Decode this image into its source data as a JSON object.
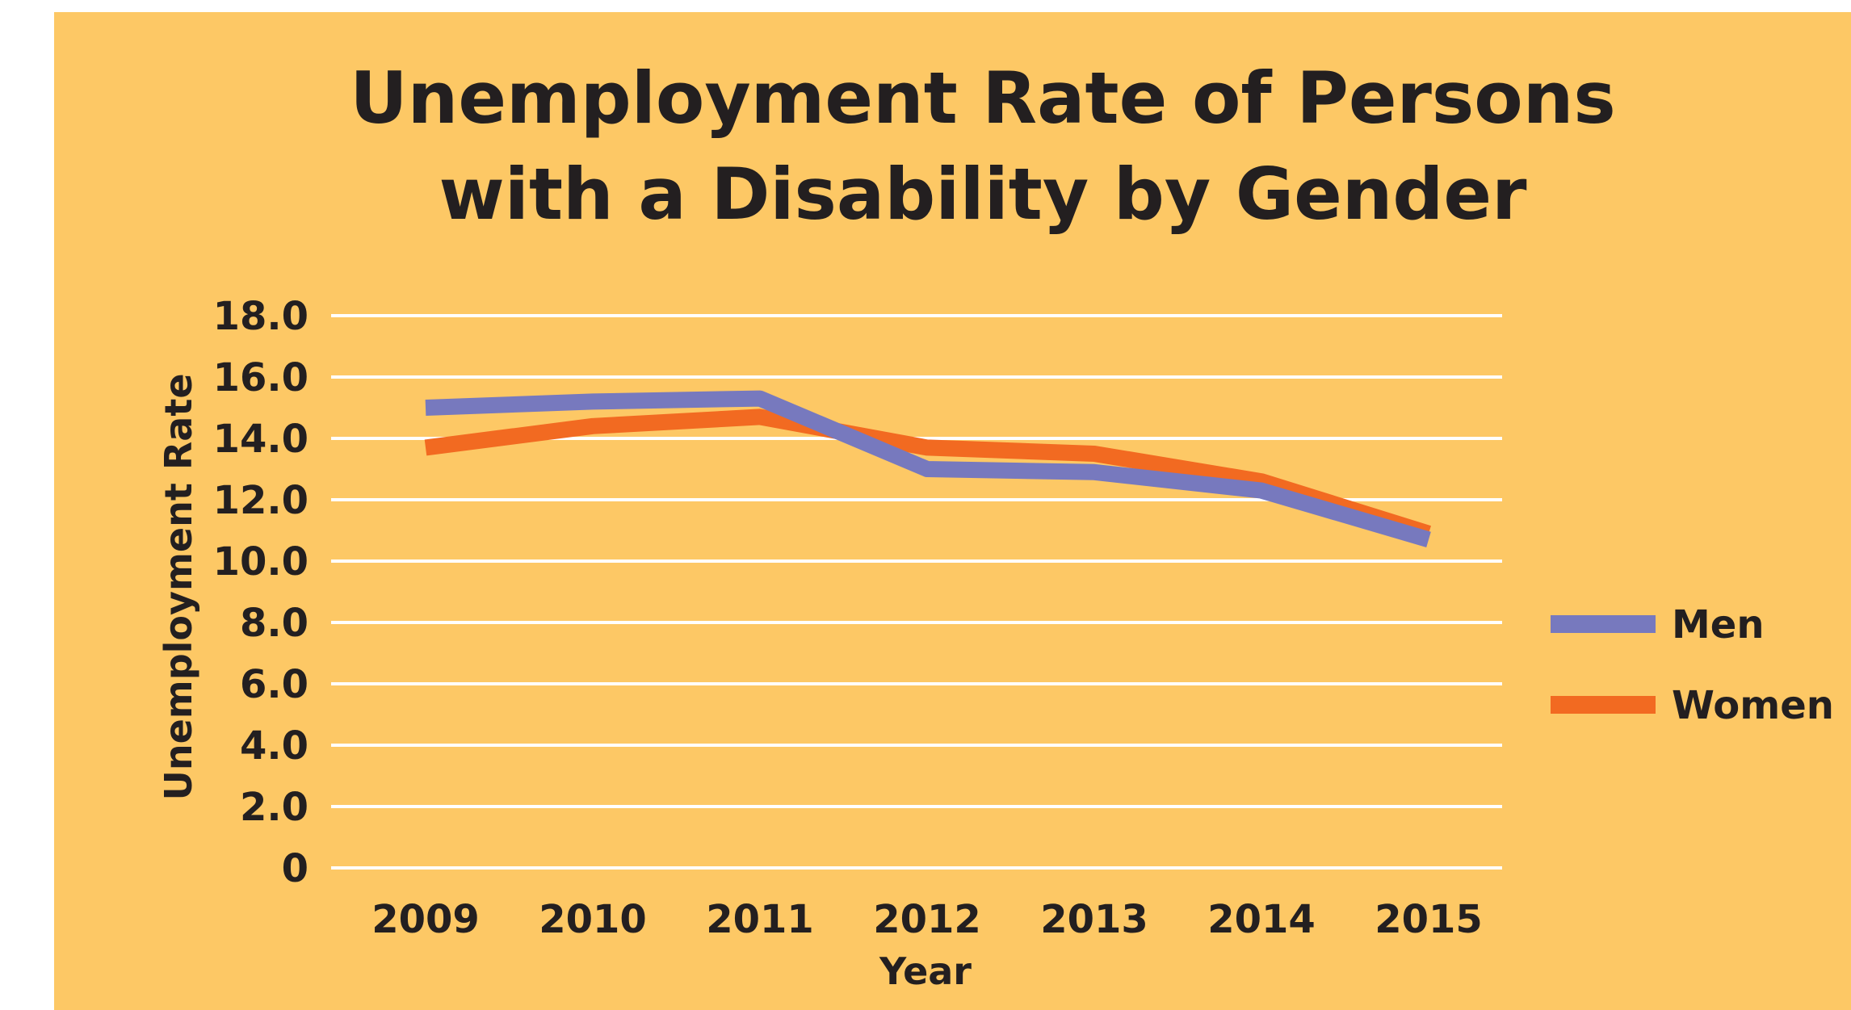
{
  "chart_data": {
    "type": "line",
    "title_lines": [
      "Unemployment Rate of Persons",
      "with a Disability by Gender"
    ],
    "xlabel": "Year",
    "ylabel": "Unemployment Rate",
    "categories": [
      "2009",
      "2010",
      "2011",
      "2012",
      "2013",
      "2014",
      "2015"
    ],
    "y_ticks": [
      "0",
      "2.0",
      "4.0",
      "6.0",
      "8.0",
      "10.0",
      "12.0",
      "14.0",
      "16.0",
      "18.0"
    ],
    "ylim": [
      0,
      18
    ],
    "grid": true,
    "legend_position": "right",
    "series": [
      {
        "name": "Men",
        "color": "#7779BE",
        "values": [
          15.0,
          15.2,
          15.3,
          13.0,
          12.9,
          12.3,
          10.7
        ]
      },
      {
        "name": "Women",
        "color": "#F26A21",
        "values": [
          13.7,
          14.4,
          14.7,
          13.7,
          13.5,
          12.6,
          10.9
        ]
      }
    ]
  }
}
